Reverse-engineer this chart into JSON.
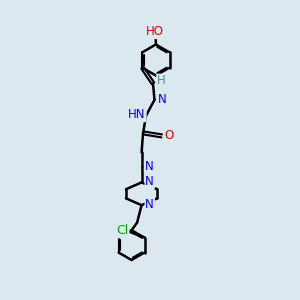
{
  "background_color": "#dce8f0",
  "bond_color": "#000000",
  "bond_width": 1.8,
  "atom_colors": {
    "C": "#000000",
    "H": "#4a9090",
    "N": "#0000ee",
    "O": "#dd0000",
    "Cl": "#00aa00"
  },
  "font_size": 8.5,
  "figsize": [
    3.0,
    3.0
  ],
  "dpi": 100
}
